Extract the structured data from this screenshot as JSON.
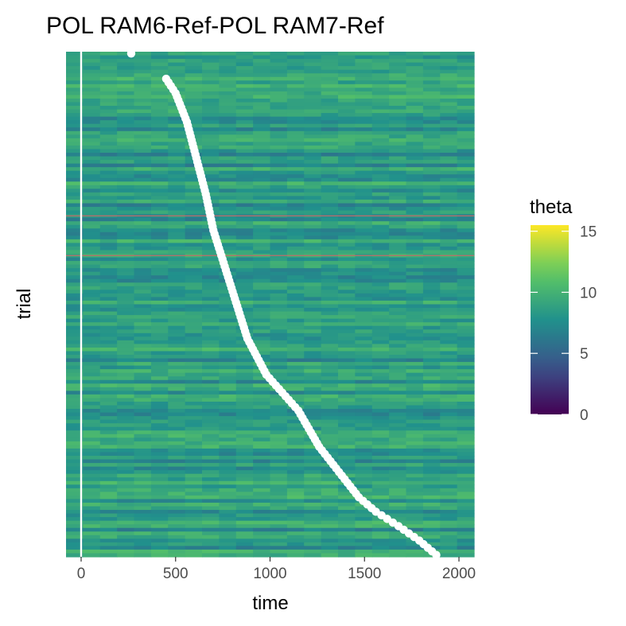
{
  "chart_data": {
    "type": "heatmap",
    "title": "POL RAM6-Ref-POL RAM7-Ref",
    "xlabel": "time",
    "ylabel": "trial",
    "xlim": [
      -80,
      2080
    ],
    "x_ticks": [
      0,
      500,
      1000,
      1500,
      2000
    ],
    "x_tick_labels": [
      "0",
      "500",
      "1000",
      "1500",
      "2000"
    ],
    "n_trials": 140,
    "fill_variable": "theta",
    "color_scale": {
      "name": "viridis",
      "limits": [
        0,
        15.5
      ],
      "breaks": [
        0,
        5,
        10,
        15
      ],
      "break_labels": [
        "0",
        "5",
        "10",
        "15"
      ]
    },
    "vline_x": 0,
    "hline_trials": [
      45.5,
      56.5
    ],
    "hline_color": "#c46a6a",
    "response_points": [
      {
        "trial": 1,
        "time": 265
      },
      {
        "trial": 8,
        "time": 450
      },
      {
        "trial": 12,
        "time": 500
      },
      {
        "trial": 20,
        "time": 560
      },
      {
        "trial": 30,
        "time": 610
      },
      {
        "trial": 40,
        "time": 660
      },
      {
        "trial": 50,
        "time": 700
      },
      {
        "trial": 60,
        "time": 760
      },
      {
        "trial": 70,
        "time": 820
      },
      {
        "trial": 80,
        "time": 880
      },
      {
        "trial": 90,
        "time": 980
      },
      {
        "trial": 100,
        "time": 1150
      },
      {
        "trial": 110,
        "time": 1260
      },
      {
        "trial": 118,
        "time": 1380
      },
      {
        "trial": 124,
        "time": 1470
      },
      {
        "trial": 128,
        "time": 1560
      },
      {
        "trial": 132,
        "time": 1680
      },
      {
        "trial": 136,
        "time": 1790
      },
      {
        "trial": 140,
        "time": 1880
      }
    ],
    "grid": false,
    "legend_position": "right"
  }
}
